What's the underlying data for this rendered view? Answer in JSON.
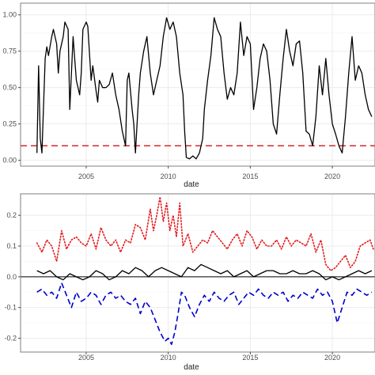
{
  "chart_data": [
    {
      "type": "line",
      "xlabel": "date",
      "ylabel": "",
      "xlim": [
        2001.0,
        2022.6
      ],
      "ylim": [
        -0.04,
        1.08
      ],
      "x_ticks": [
        2005,
        2010,
        2015,
        2020
      ],
      "x_tick_labels": [
        "2005",
        "2010",
        "2015",
        "2020"
      ],
      "y_ticks": [
        0.0,
        0.25,
        0.5,
        0.75,
        1.0
      ],
      "y_tick_labels": [
        "0.00",
        "0.25",
        "0.50",
        "0.75",
        "1.00"
      ],
      "grid": true,
      "reference_line": {
        "y": 0.1,
        "color": "#d62728",
        "style": "dashed"
      },
      "series": [
        {
          "color": "#000000",
          "style": "solid",
          "x": [
            2002.0,
            2002.1,
            2002.2,
            2002.3,
            2002.5,
            2002.6,
            2002.7,
            2002.9,
            2003.0,
            2003.2,
            2003.3,
            2003.4,
            2003.6,
            2003.7,
            2003.9,
            2004.0,
            2004.2,
            2004.3,
            2004.4,
            2004.6,
            2004.7,
            2004.8,
            2005.0,
            2005.1,
            2005.3,
            2005.4,
            2005.6,
            2005.7,
            2005.8,
            2006.0,
            2006.2,
            2006.4,
            2006.6,
            2006.8,
            2007.0,
            2007.2,
            2007.4,
            2007.5,
            2007.6,
            2007.8,
            2007.9,
            2008.0,
            2008.2,
            2008.3,
            2008.5,
            2008.7,
            2008.9,
            2009.1,
            2009.3,
            2009.5,
            2009.7,
            2009.9,
            2010.1,
            2010.3,
            2010.5,
            2010.7,
            2010.9,
            2011.0,
            2011.1,
            2011.3,
            2011.5,
            2011.7,
            2011.9,
            2012.1,
            2012.2,
            2012.4,
            2012.6,
            2012.8,
            2013.0,
            2013.2,
            2013.4,
            2013.6,
            2013.8,
            2014.0,
            2014.2,
            2014.4,
            2014.6,
            2014.8,
            2015.0,
            2015.2,
            2015.4,
            2015.6,
            2015.8,
            2016.0,
            2016.2,
            2016.4,
            2016.6,
            2016.8,
            2017.0,
            2017.2,
            2017.4,
            2017.6,
            2017.8,
            2018.0,
            2018.2,
            2018.4,
            2018.6,
            2018.8,
            2019.0,
            2019.2,
            2019.4,
            2019.6,
            2019.8,
            2020.0,
            2020.2,
            2020.4,
            2020.6,
            2020.8,
            2021.0,
            2021.2,
            2021.4,
            2021.6,
            2021.8,
            2022.0,
            2022.2,
            2022.4
          ],
          "y": [
            0.05,
            0.65,
            0.15,
            0.05,
            0.7,
            0.78,
            0.72,
            0.85,
            0.9,
            0.8,
            0.6,
            0.75,
            0.85,
            0.95,
            0.9,
            0.35,
            0.85,
            0.7,
            0.55,
            0.45,
            0.6,
            0.9,
            0.95,
            0.92,
            0.55,
            0.65,
            0.48,
            0.4,
            0.55,
            0.5,
            0.5,
            0.52,
            0.6,
            0.45,
            0.35,
            0.2,
            0.1,
            0.55,
            0.6,
            0.35,
            0.25,
            0.05,
            0.45,
            0.6,
            0.75,
            0.85,
            0.6,
            0.45,
            0.55,
            0.65,
            0.85,
            0.98,
            0.9,
            0.95,
            0.85,
            0.6,
            0.45,
            0.2,
            0.02,
            0.01,
            0.03,
            0.01,
            0.05,
            0.15,
            0.35,
            0.55,
            0.72,
            0.98,
            0.9,
            0.85,
            0.6,
            0.42,
            0.5,
            0.45,
            0.6,
            0.95,
            0.72,
            0.85,
            0.8,
            0.35,
            0.5,
            0.7,
            0.8,
            0.75,
            0.55,
            0.25,
            0.18,
            0.45,
            0.7,
            0.9,
            0.75,
            0.65,
            0.8,
            0.82,
            0.6,
            0.2,
            0.18,
            0.1,
            0.3,
            0.65,
            0.45,
            0.7,
            0.45,
            0.25,
            0.18,
            0.1,
            0.05,
            0.3,
            0.6,
            0.85,
            0.55,
            0.65,
            0.6,
            0.45,
            0.35,
            0.3
          ]
        }
      ]
    },
    {
      "type": "line",
      "xlabel": "date",
      "ylabel": "",
      "xlim": [
        2001.0,
        2022.6
      ],
      "ylim": [
        -0.245,
        0.27
      ],
      "x_ticks": [
        2005,
        2010,
        2015,
        2020
      ],
      "x_tick_labels": [
        "2005",
        "2010",
        "2015",
        "2020"
      ],
      "y_ticks": [
        -0.2,
        -0.1,
        0.0,
        0.1,
        0.2
      ],
      "y_tick_labels": [
        "-0.2",
        "-0.1",
        "0.0",
        "0.1",
        "0.2"
      ],
      "grid": true,
      "reference_line": {
        "y": 0.0,
        "color": "#000000",
        "style": "solid"
      },
      "series": [
        {
          "color": "#e41a1c",
          "style": "dotted",
          "x": [
            2002.0,
            2002.3,
            2002.6,
            2002.9,
            2003.2,
            2003.5,
            2003.8,
            2004.1,
            2004.4,
            2004.7,
            2005.0,
            2005.3,
            2005.6,
            2005.9,
            2006.2,
            2006.5,
            2006.8,
            2007.1,
            2007.4,
            2007.7,
            2008.0,
            2008.3,
            2008.6,
            2008.9,
            2009.1,
            2009.3,
            2009.5,
            2009.7,
            2009.9,
            2010.1,
            2010.3,
            2010.5,
            2010.7,
            2010.9,
            2011.2,
            2011.5,
            2011.8,
            2012.1,
            2012.4,
            2012.7,
            2013.0,
            2013.3,
            2013.6,
            2013.9,
            2014.2,
            2014.5,
            2014.8,
            2015.1,
            2015.4,
            2015.7,
            2016.0,
            2016.3,
            2016.6,
            2016.9,
            2017.2,
            2017.5,
            2017.8,
            2018.1,
            2018.4,
            2018.7,
            2019.0,
            2019.3,
            2019.6,
            2019.9,
            2020.2,
            2020.5,
            2020.8,
            2021.1,
            2021.4,
            2021.7,
            2022.0,
            2022.3,
            2022.5
          ],
          "y": [
            0.11,
            0.08,
            0.12,
            0.1,
            0.05,
            0.15,
            0.09,
            0.12,
            0.13,
            0.11,
            0.1,
            0.14,
            0.09,
            0.16,
            0.12,
            0.1,
            0.12,
            0.08,
            0.12,
            0.11,
            0.17,
            0.16,
            0.12,
            0.22,
            0.15,
            0.2,
            0.26,
            0.18,
            0.24,
            0.15,
            0.2,
            0.13,
            0.24,
            0.1,
            0.14,
            0.08,
            0.1,
            0.12,
            0.11,
            0.15,
            0.13,
            0.11,
            0.09,
            0.12,
            0.14,
            0.1,
            0.15,
            0.13,
            0.09,
            0.12,
            0.1,
            0.1,
            0.12,
            0.09,
            0.13,
            0.1,
            0.12,
            0.11,
            0.1,
            0.14,
            0.08,
            0.12,
            0.04,
            0.02,
            0.03,
            0.05,
            0.07,
            0.03,
            0.05,
            0.1,
            0.11,
            0.12,
            0.09
          ]
        },
        {
          "color": "#000000",
          "style": "solid",
          "x": [
            2002.0,
            2002.4,
            2002.8,
            2003.2,
            2003.6,
            2004.0,
            2004.4,
            2004.8,
            2005.2,
            2005.6,
            2006.0,
            2006.4,
            2006.8,
            2007.2,
            2007.6,
            2008.0,
            2008.4,
            2008.8,
            2009.2,
            2009.6,
            2010.0,
            2010.4,
            2010.8,
            2011.2,
            2011.6,
            2012.0,
            2012.4,
            2012.8,
            2013.2,
            2013.6,
            2014.0,
            2014.4,
            2014.8,
            2015.2,
            2015.6,
            2016.0,
            2016.4,
            2016.8,
            2017.2,
            2017.6,
            2018.0,
            2018.4,
            2018.8,
            2019.2,
            2019.6,
            2020.0,
            2020.4,
            2020.8,
            2021.2,
            2021.6,
            2022.0,
            2022.4
          ],
          "y": [
            0.02,
            0.01,
            0.02,
            0.0,
            -0.01,
            0.01,
            0.0,
            -0.01,
            0.0,
            0.02,
            0.01,
            -0.01,
            0.0,
            0.02,
            0.01,
            0.03,
            0.02,
            0.0,
            0.02,
            0.03,
            0.02,
            0.01,
            0.0,
            0.03,
            0.02,
            0.04,
            0.03,
            0.02,
            0.01,
            0.02,
            0.0,
            0.01,
            0.02,
            0.0,
            0.01,
            0.02,
            0.02,
            0.01,
            0.01,
            0.02,
            0.01,
            0.01,
            0.02,
            0.01,
            -0.01,
            0.0,
            -0.01,
            0.0,
            0.01,
            0.02,
            0.01,
            0.02
          ]
        },
        {
          "color": "#0000cd",
          "style": "dashed",
          "x": [
            2002.0,
            2002.3,
            2002.6,
            2002.9,
            2003.2,
            2003.5,
            2003.8,
            2004.1,
            2004.4,
            2004.7,
            2005.0,
            2005.3,
            2005.6,
            2005.9,
            2006.2,
            2006.5,
            2006.8,
            2007.1,
            2007.4,
            2007.7,
            2008.0,
            2008.3,
            2008.6,
            2008.9,
            2009.2,
            2009.5,
            2009.8,
            2010.0,
            2010.2,
            2010.4,
            2010.6,
            2010.8,
            2011.0,
            2011.3,
            2011.6,
            2011.9,
            2012.2,
            2012.5,
            2012.8,
            2013.1,
            2013.4,
            2013.7,
            2014.0,
            2014.3,
            2014.6,
            2014.9,
            2015.2,
            2015.5,
            2015.8,
            2016.1,
            2016.4,
            2016.7,
            2017.0,
            2017.3,
            2017.6,
            2017.9,
            2018.2,
            2018.5,
            2018.8,
            2019.1,
            2019.4,
            2019.7,
            2020.0,
            2020.3,
            2020.6,
            2020.9,
            2021.2,
            2021.5,
            2021.8,
            2022.1,
            2022.4
          ],
          "y": [
            -0.05,
            -0.04,
            -0.06,
            -0.05,
            -0.07,
            -0.02,
            -0.06,
            -0.1,
            -0.05,
            -0.08,
            -0.07,
            -0.05,
            -0.06,
            -0.09,
            -0.06,
            -0.05,
            -0.07,
            -0.06,
            -0.08,
            -0.09,
            -0.07,
            -0.12,
            -0.08,
            -0.1,
            -0.14,
            -0.18,
            -0.21,
            -0.2,
            -0.22,
            -0.18,
            -0.12,
            -0.05,
            -0.06,
            -0.1,
            -0.13,
            -0.09,
            -0.06,
            -0.08,
            -0.05,
            -0.07,
            -0.08,
            -0.06,
            -0.05,
            -0.09,
            -0.07,
            -0.05,
            -0.06,
            -0.04,
            -0.06,
            -0.07,
            -0.05,
            -0.06,
            -0.05,
            -0.08,
            -0.06,
            -0.07,
            -0.05,
            -0.06,
            -0.07,
            -0.04,
            -0.06,
            -0.05,
            -0.08,
            -0.15,
            -0.1,
            -0.05,
            -0.06,
            -0.04,
            -0.05,
            -0.06,
            -0.05
          ]
        }
      ]
    }
  ]
}
